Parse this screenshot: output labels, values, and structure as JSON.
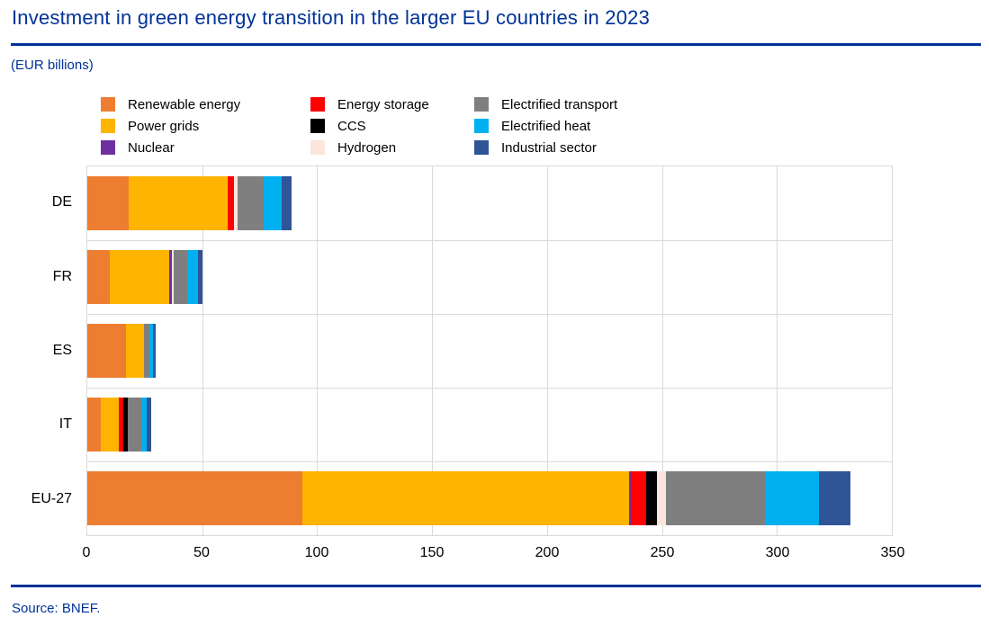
{
  "header": {
    "title": "Investment in green energy transition in the larger EU countries in 2023",
    "units": "(EUR billions)"
  },
  "footer": {
    "source": "Source: BNEF."
  },
  "colors": {
    "accent_blue": "#003299",
    "grid": "#d9d9d9",
    "text": "#000000"
  },
  "chart_data": {
    "type": "bar",
    "orientation": "horizontal",
    "stacked": true,
    "title": "Investment in green energy transition in the larger EU countries in 2023",
    "units_label": "(EUR billions)",
    "xlabel": "",
    "ylabel": "",
    "xlim": [
      0,
      350
    ],
    "xticks": [
      0,
      50,
      100,
      150,
      200,
      250,
      300,
      350
    ],
    "grid": true,
    "legend_position": "top",
    "legend_columns": 3,
    "categories": [
      "DE",
      "FR",
      "ES",
      "IT",
      "EU-27"
    ],
    "series": [
      {
        "name": "Renewable energy",
        "color": "#ed7d31",
        "values": [
          18.2,
          9.8,
          16.9,
          6.0,
          93.4
        ]
      },
      {
        "name": "Power grids",
        "color": "#ffb400",
        "values": [
          42.8,
          25.7,
          7.7,
          7.7,
          142.2
        ]
      },
      {
        "name": "Nuclear",
        "color": "#7030a0",
        "values": [
          0,
          0.8,
          0,
          0,
          1.0
        ]
      },
      {
        "name": "Energy storage",
        "color": "#fe0000",
        "values": [
          2.9,
          0.7,
          0,
          2.1,
          6.6
        ]
      },
      {
        "name": "CCS",
        "color": "#000000",
        "values": [
          0,
          0,
          0,
          1.7,
          4.7
        ]
      },
      {
        "name": "Hydrogen",
        "color": "#fbe5dc",
        "values": [
          1.3,
          0.6,
          0,
          0,
          3.9
        ]
      },
      {
        "name": "Electrified transport",
        "color": "#7f7f7f",
        "values": [
          11.7,
          5.7,
          2.6,
          5.9,
          43.0
        ]
      },
      {
        "name": "Electrified heat",
        "color": "#00b0f0",
        "values": [
          7.8,
          5.0,
          1.4,
          2.6,
          23.4
        ]
      },
      {
        "name": "Industrial sector",
        "color": "#2f5597",
        "values": [
          4.2,
          1.8,
          1.3,
          1.7,
          13.7
        ]
      }
    ],
    "totals": [
      88.9,
      50.1,
      29.9,
      27.7,
      331.9
    ]
  },
  "layout_hints": {
    "legend_col_offsets": [
      0,
      233,
      415
    ]
  }
}
